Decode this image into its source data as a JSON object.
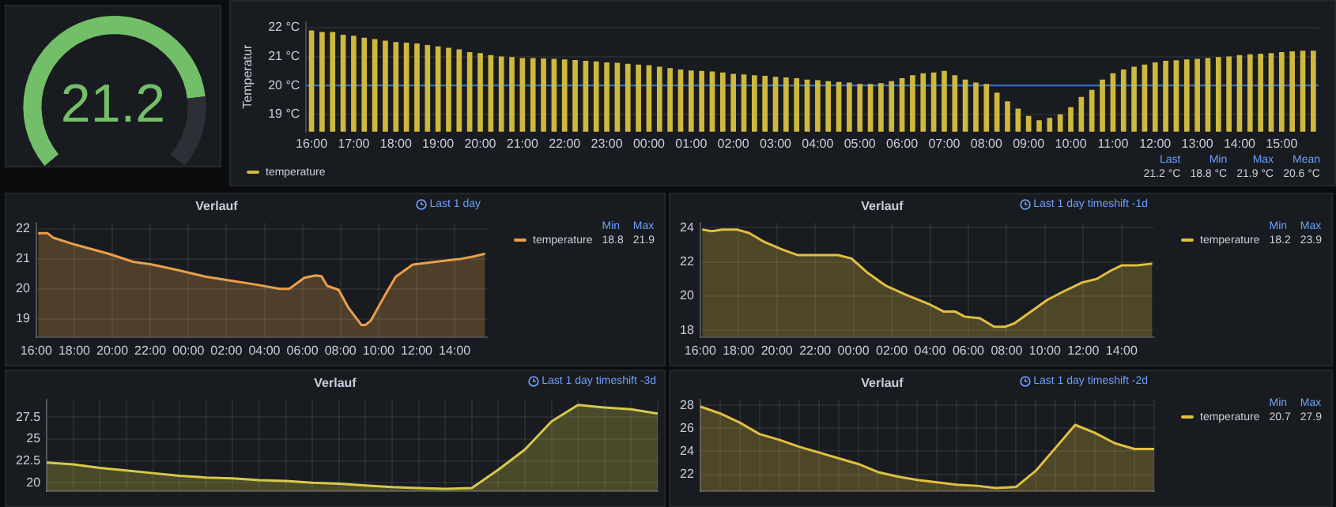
{
  "chart_data": [
    {
      "type": "donut",
      "categories": [
        null,
        null
      ],
      "values": [
        82,
        18
      ],
      "colors": [
        "#73bf69",
        "#2c3036"
      ],
      "annotations": [
        "21.2"
      ]
    },
    {
      "type": "bar",
      "ylabel": "Temperatur",
      "categories": [
        "16:00",
        null,
        null,
        null,
        "17:00",
        null,
        null,
        null,
        "18:00",
        null,
        null,
        null,
        "19:00",
        null,
        null,
        null,
        "20:00",
        null,
        null,
        null,
        "21:00",
        null,
        null,
        null,
        "22:00",
        null,
        null,
        null,
        "23:00",
        null,
        null,
        null,
        "00:00",
        null,
        null,
        null,
        "01:00",
        null,
        null,
        null,
        "02:00",
        null,
        null,
        null,
        "03:00",
        null,
        null,
        null,
        "04:00",
        null,
        null,
        null,
        "05:00",
        null,
        null,
        null,
        "06:00",
        null,
        null,
        null,
        "07:00",
        null,
        null,
        null,
        "08:00",
        null,
        null,
        null,
        "09:00",
        null,
        null,
        null,
        "10:00",
        null,
        null,
        null,
        "11:00",
        null,
        null,
        null,
        "12:00",
        null,
        null,
        null,
        "13:00",
        null,
        null,
        null,
        "14:00",
        null,
        null,
        null,
        "15:00",
        null,
        null,
        null
      ],
      "series": [
        {
          "name": "temperature",
          "color": "#cfb83e",
          "values": [
            21.9,
            21.85,
            21.85,
            21.75,
            21.72,
            21.65,
            21.6,
            21.55,
            21.5,
            21.48,
            21.45,
            21.4,
            21.35,
            21.3,
            21.25,
            21.15,
            21.12,
            21.05,
            21.0,
            20.98,
            20.95,
            20.95,
            20.93,
            20.92,
            20.9,
            20.88,
            20.85,
            20.83,
            20.8,
            20.78,
            20.75,
            20.72,
            20.7,
            20.65,
            20.6,
            20.55,
            20.52,
            20.5,
            20.48,
            20.45,
            20.4,
            20.38,
            20.35,
            20.33,
            20.3,
            20.28,
            20.25,
            20.2,
            20.18,
            20.15,
            20.12,
            20.1,
            20.05,
            20.05,
            20.08,
            20.15,
            20.25,
            20.35,
            20.42,
            20.45,
            20.5,
            20.35,
            20.2,
            20.1,
            20.05,
            19.75,
            19.45,
            19.2,
            18.95,
            18.8,
            18.88,
            19.0,
            19.25,
            19.6,
            19.85,
            20.2,
            20.42,
            20.55,
            20.65,
            20.72,
            20.8,
            20.85,
            20.87,
            20.9,
            20.92,
            20.95,
            20.98,
            21.0,
            21.05,
            21.08,
            21.1,
            21.12,
            21.15,
            21.18,
            21.2,
            21.2
          ]
        }
      ],
      "ylim": [
        18.4,
        22.2
      ],
      "yticks": [
        {
          "value": 19,
          "label": "19 °C"
        },
        {
          "value": 20,
          "label": "20 °C"
        },
        {
          "value": 21,
          "label": "21 °C"
        },
        {
          "value": 22,
          "label": "22 °C"
        }
      ],
      "ref_lines": [
        {
          "axis": "y",
          "value": 20,
          "color": "#3274d9"
        }
      ],
      "grid": "y",
      "legend": "bottom",
      "annotations": [
        "Last",
        "Min",
        "Max",
        "Mean",
        "21.2 °C",
        "18.8 °C",
        "21.9 °C",
        "20.6 °C"
      ]
    },
    {
      "type": "area",
      "title": "Verlauf",
      "subtitle": "Last 1 day",
      "series": [
        {
          "name": "temperature",
          "color": "#e8a04a",
          "x": [
            "--01-01T16:06",
            "--01-01T16:36",
            "--01-01T16:54",
            "--01-01T18:03",
            "--01-01T19:48",
            "--01-01T21:06",
            "--01-01T22:06",
            "--01-01T23:24",
            "--01-02T00:57",
            "--01-02T02:12",
            "--01-02T03:30",
            "--01-02T04:48",
            "--01-02T05:18",
            "--01-02T06:06",
            "--01-02T06:42",
            "--01-02T07:00",
            "--01-02T07:18",
            "--01-02T07:54",
            "--01-02T08:24",
            "--01-02T09:06",
            "--01-02T09:18",
            "--01-02T09:36",
            "--01-02T10:18",
            "--01-02T10:54",
            "--01-02T11:48",
            "--01-02T13:00",
            "--01-02T14:15",
            "--01-02T15:00",
            "--01-02T15:36"
          ],
          "values": [
            21.85,
            21.85,
            21.7,
            21.47,
            21.17,
            20.9,
            20.81,
            20.63,
            20.4,
            20.28,
            20.15,
            20.0,
            20.0,
            20.37,
            20.45,
            20.42,
            20.1,
            19.97,
            19.39,
            18.8,
            18.8,
            18.95,
            19.75,
            20.4,
            20.81,
            20.9,
            20.99,
            21.08,
            21.17
          ]
        }
      ],
      "xlim": [
        "--01-01T16:00",
        "--01-02T15:42"
      ],
      "xticks": [
        {
          "value": "--01-01T16:00",
          "label": "16:00"
        },
        {
          "value": "--01-01T18:00",
          "label": "18:00"
        },
        {
          "value": "--01-01T20:00",
          "label": "20:00"
        },
        {
          "value": "--01-01T22:00",
          "label": "22:00"
        },
        {
          "value": "--01-02T00:00",
          "label": "00:00"
        },
        {
          "value": "--01-02T02:00",
          "label": "02:00"
        },
        {
          "value": "--01-02T04:00",
          "label": "04:00"
        },
        {
          "value": "--01-02T06:00",
          "label": "06:00"
        },
        {
          "value": "--01-02T08:00",
          "label": "08:00"
        },
        {
          "value": "--01-02T10:00",
          "label": "10:00"
        },
        {
          "value": "--01-02T12:00",
          "label": "12:00"
        },
        {
          "value": "--01-02T14:00",
          "label": "14:00"
        }
      ],
      "ylim": [
        18.4,
        22.2
      ],
      "yticks": [
        19,
        20,
        21,
        22
      ],
      "grid": true,
      "legend": "right",
      "annotations": [
        "Min",
        "Max",
        "18.8",
        "21.9"
      ]
    },
    {
      "type": "area",
      "title": "Verlauf",
      "subtitle": "Last 1 day timeshift -1d",
      "series": [
        {
          "name": "temperature",
          "color": "#e0c040",
          "x": [
            "--01-01T16:06",
            "--01-01T16:36",
            "--01-01T17:09",
            "--01-01T17:54",
            "--01-01T18:33",
            "--01-01T19:18",
            "--01-01T20:21",
            "--01-01T21:06",
            "--01-01T21:36",
            "--01-01T23:12",
            "--01-01T23:54",
            "--01-02T00:42",
            "--01-02T01:42",
            "--01-02T02:42",
            "--01-02T04:00",
            "--01-02T04:42",
            "--01-02T05:18",
            "--01-02T05:48",
            "--01-02T06:36",
            "--01-02T07:21",
            "--01-02T07:54",
            "--01-02T08:24",
            "--01-02T09:24",
            "--01-02T10:09",
            "--01-02T11:12",
            "--01-02T11:57",
            "--01-02T12:42",
            "--01-02T13:27",
            "--01-02T14:00",
            "--01-02T14:48",
            "--01-02T15:36"
          ],
          "values": [
            23.9,
            23.8,
            23.9,
            23.9,
            23.7,
            23.2,
            22.7,
            22.4,
            22.4,
            22.4,
            22.2,
            21.4,
            20.6,
            20.1,
            19.5,
            19.1,
            19.1,
            18.8,
            18.7,
            18.2,
            18.2,
            18.4,
            19.2,
            19.8,
            20.4,
            20.8,
            21.0,
            21.5,
            21.8,
            21.8,
            21.9
          ]
        }
      ],
      "xlim": [
        "--01-01T16:00",
        "--01-02T15:42"
      ],
      "xticks": [
        {
          "value": "--01-01T16:00",
          "label": "16:00"
        },
        {
          "value": "--01-01T18:00",
          "label": "18:00"
        },
        {
          "value": "--01-01T20:00",
          "label": "20:00"
        },
        {
          "value": "--01-01T22:00",
          "label": "22:00"
        },
        {
          "value": "--01-02T00:00",
          "label": "00:00"
        },
        {
          "value": "--01-02T02:00",
          "label": "02:00"
        },
        {
          "value": "--01-02T04:00",
          "label": "04:00"
        },
        {
          "value": "--01-02T06:00",
          "label": "06:00"
        },
        {
          "value": "--01-02T08:00",
          "label": "08:00"
        },
        {
          "value": "--01-02T10:00",
          "label": "10:00"
        },
        {
          "value": "--01-02T12:00",
          "label": "12:00"
        },
        {
          "value": "--01-02T14:00",
          "label": "14:00"
        }
      ],
      "ylim": [
        17.6,
        24.3
      ],
      "yticks": [
        18,
        20,
        22,
        24
      ],
      "grid": true,
      "legend": "right",
      "annotations": [
        "Min",
        "Max",
        "18.2",
        "23.9"
      ]
    },
    {
      "type": "area",
      "title": "Verlauf",
      "subtitle": "Last 1 day timeshift -3d",
      "categories": [
        null,
        null,
        null,
        null,
        null,
        null,
        null,
        null,
        null,
        null,
        null,
        null,
        null,
        null,
        null,
        null,
        null,
        null,
        null,
        null,
        null,
        null,
        null,
        null
      ],
      "series": [
        {
          "color": "#d6c94a",
          "values": [
            22.3,
            22.1,
            21.7,
            21.4,
            21.1,
            20.8,
            20.6,
            20.5,
            20.3,
            20.2,
            20.0,
            19.9,
            19.7,
            19.5,
            19.4,
            19.3,
            19.4,
            21.5,
            23.8,
            27.0,
            28.9,
            28.6,
            28.4,
            27.9
          ]
        }
      ],
      "ylim": [
        19,
        29.5
      ],
      "yticks": [
        20,
        22.5,
        25,
        27.5
      ],
      "grid": true,
      "tick_labels": "y"
    },
    {
      "type": "area",
      "title": "Verlauf",
      "subtitle": "Last 1 day timeshift -2d",
      "categories": [
        null,
        null,
        null,
        null,
        null,
        null,
        null,
        null,
        null,
        null,
        null,
        null,
        null,
        null,
        null,
        null,
        null,
        null,
        null,
        null,
        null,
        null,
        null,
        null
      ],
      "series": [
        {
          "name": "temperature",
          "color": "#e0c040",
          "values": [
            27.9,
            27.3,
            26.5,
            25.5,
            25.0,
            24.4,
            23.9,
            23.4,
            22.9,
            22.2,
            21.8,
            21.5,
            21.3,
            21.1,
            21.0,
            20.8,
            20.9,
            22.3,
            24.3,
            26.3,
            25.6,
            24.7,
            24.2,
            24.2
          ]
        }
      ],
      "ylim": [
        20.5,
        28.5
      ],
      "yticks": [
        22,
        24,
        26,
        28
      ],
      "grid": true,
      "tick_labels": "y",
      "legend": "right",
      "annotations": [
        "Min",
        "Max",
        "20.7",
        "27.9"
      ]
    }
  ]
}
